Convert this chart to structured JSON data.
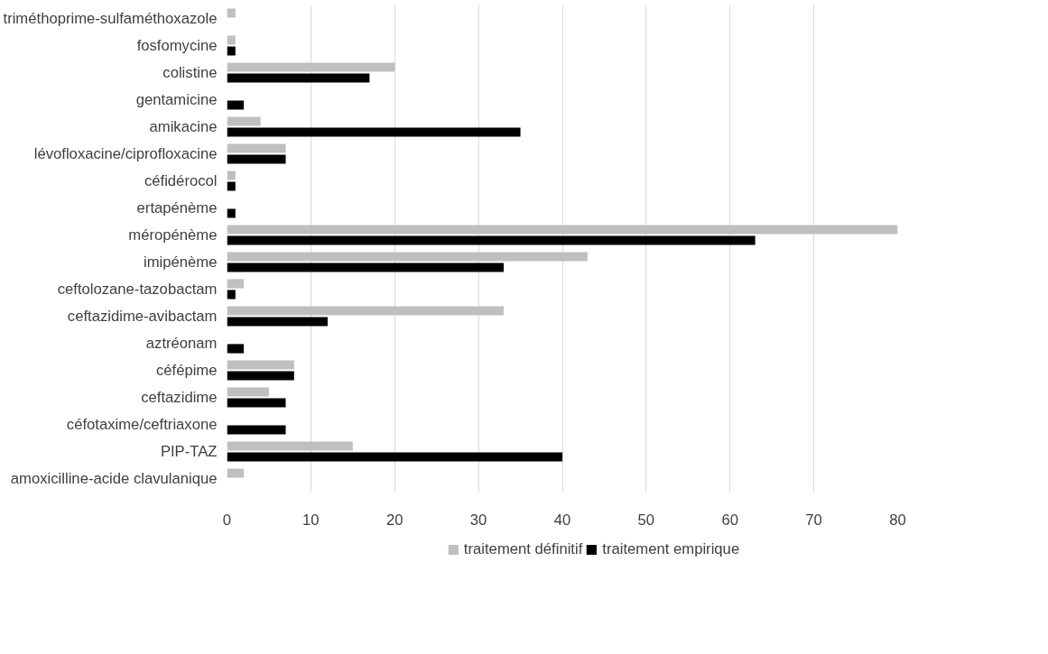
{
  "chart_data": {
    "type": "bar",
    "orientation": "horizontal",
    "categories": [
      "triméthoprime-sulfaméthoxazole",
      "fosfomycine",
      "colistine",
      "gentamicine",
      "amikacine",
      "lévofloxacine/ciprofloxacine",
      "céfidérocol",
      "ertapénème",
      "méropénème",
      "imipénème",
      "ceftolozane-tazobactam",
      "ceftazidime-avibactam",
      "aztréonam",
      "céfépime",
      "ceftazidime",
      "céfotaxime/ceftriaxone",
      "PIP-TAZ",
      "amoxicilline-acide clavulanique"
    ],
    "series": [
      {
        "name": "traitement définitif",
        "color": "#bfbfbf",
        "values": [
          1,
          1,
          20,
          0,
          4,
          7,
          1,
          0,
          80,
          43,
          2,
          33,
          0,
          8,
          5,
          0,
          15,
          2
        ]
      },
      {
        "name": "traitement empirique",
        "color": "#000000",
        "values": [
          0,
          1,
          17,
          2,
          35,
          7,
          1,
          1,
          63,
          33,
          1,
          12,
          2,
          8,
          7,
          7,
          40,
          0
        ]
      }
    ],
    "xlim": [
      0,
      80
    ],
    "xticks": [
      0,
      10,
      20,
      30,
      40,
      50,
      60,
      70,
      80
    ],
    "grid": "x",
    "legend": "bottom"
  }
}
